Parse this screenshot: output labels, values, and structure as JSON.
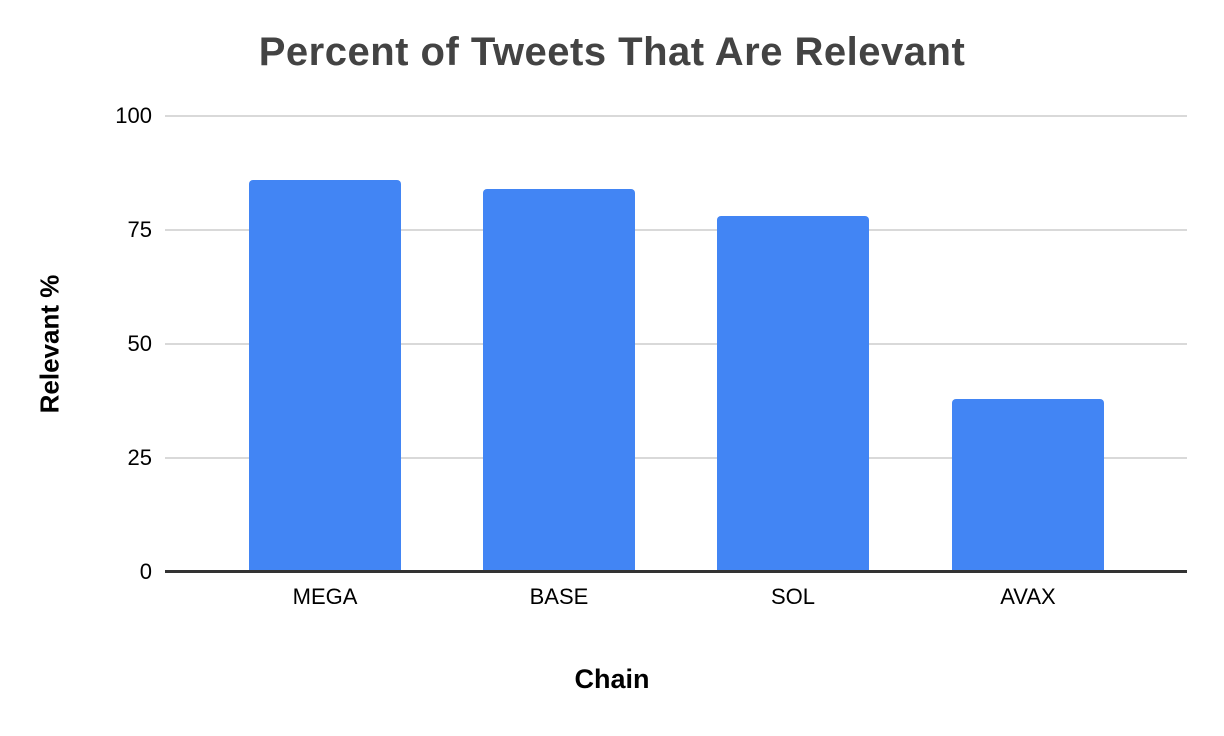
{
  "chart_data": {
    "type": "bar",
    "title": "Percent of Tweets That Are Relevant",
    "xlabel": "Chain",
    "ylabel": "Relevant %",
    "categories": [
      "MEGA",
      "BASE",
      "SOL",
      "AVAX"
    ],
    "values": [
      86,
      84,
      78,
      38
    ],
    "ylim": [
      0,
      100
    ],
    "yticks": [
      0,
      25,
      50,
      75,
      100
    ],
    "grid": "horizontal",
    "legend": "none",
    "bar_color": "#4285f4",
    "colors": {
      "background": "#ffffff",
      "title_text": "#434343",
      "axis_text": "#000000",
      "gridline": "#d9d9d9",
      "axis_line": "#333333"
    }
  }
}
